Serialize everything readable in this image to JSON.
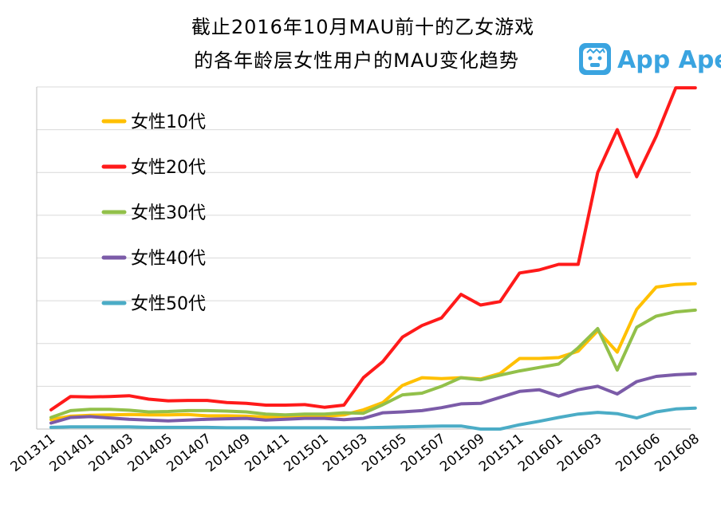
{
  "title_lines": [
    "截止2016年10月MAU前十的乙女游戏",
    "的各年龄层女性用户的MAU变化趋势"
  ],
  "brand": {
    "name": "App Ape",
    "color": "#3aa4e0",
    "icon": "ape-face-icon"
  },
  "chart_data": {
    "type": "line",
    "title": "截止2016年10月MAU前十的乙女游戏 的各年龄层女性用户的MAU变化趋势",
    "xlabel": "",
    "ylabel": "",
    "ylim": [
      0,
      8
    ],
    "grid": true,
    "legend_position": "top-left",
    "y_tick_labels_shown": false,
    "x": [
      "201311",
      "201312",
      "201401",
      "201402",
      "201403",
      "201404",
      "201405",
      "201406",
      "201407",
      "201408",
      "201409",
      "201410",
      "201411",
      "201412",
      "201501",
      "201502",
      "201503",
      "201504",
      "201505",
      "201506",
      "201507",
      "201508",
      "201509",
      "201510",
      "201511",
      "201512",
      "201601",
      "201602",
      "201603",
      "201604",
      "201605",
      "201606",
      "201607",
      "201608"
    ],
    "x_tick_labels": [
      "201311",
      "201401",
      "201403",
      "201405",
      "201407",
      "201409",
      "201411",
      "201501",
      "201503",
      "201505",
      "201507",
      "201509",
      "201511",
      "201601",
      "201603",
      "201606",
      "201608"
    ],
    "x_tick_indices": [
      0,
      2,
      4,
      6,
      8,
      10,
      12,
      14,
      16,
      18,
      20,
      22,
      24,
      26,
      28,
      31,
      33
    ],
    "series": [
      {
        "name": "女性10代",
        "color": "#ffc000",
        "values": [
          0.22,
          0.3,
          0.32,
          0.33,
          0.34,
          0.33,
          0.33,
          0.34,
          0.31,
          0.31,
          0.3,
          0.28,
          0.28,
          0.3,
          0.3,
          0.33,
          0.45,
          0.62,
          1.02,
          1.2,
          1.18,
          1.2,
          1.17,
          1.3,
          1.65,
          1.65,
          1.67,
          1.82,
          2.3,
          1.8,
          2.8,
          3.32,
          3.38,
          3.4
        ]
      },
      {
        "name": "女性20代",
        "color": "#ff1a1a",
        "values": [
          0.45,
          0.76,
          0.75,
          0.76,
          0.78,
          0.7,
          0.66,
          0.67,
          0.67,
          0.62,
          0.6,
          0.56,
          0.56,
          0.57,
          0.51,
          0.56,
          1.2,
          1.58,
          2.15,
          2.42,
          2.6,
          3.15,
          2.9,
          2.98,
          3.65,
          3.72,
          3.85,
          3.85,
          6.0,
          7.0,
          5.9,
          6.85,
          7.98,
          7.98
        ]
      },
      {
        "name": "女性30代",
        "color": "#92c04a",
        "values": [
          0.27,
          0.43,
          0.46,
          0.46,
          0.44,
          0.4,
          0.41,
          0.43,
          0.43,
          0.42,
          0.4,
          0.35,
          0.33,
          0.35,
          0.35,
          0.38,
          0.37,
          0.57,
          0.8,
          0.84,
          1.0,
          1.2,
          1.15,
          1.26,
          1.36,
          1.44,
          1.52,
          1.9,
          2.35,
          1.38,
          2.38,
          2.64,
          2.74,
          2.78
        ]
      },
      {
        "name": "女性40代",
        "color": "#7b5ba8",
        "values": [
          0.14,
          0.27,
          0.29,
          0.26,
          0.23,
          0.21,
          0.19,
          0.21,
          0.23,
          0.24,
          0.25,
          0.21,
          0.23,
          0.25,
          0.25,
          0.22,
          0.25,
          0.38,
          0.4,
          0.43,
          0.5,
          0.59,
          0.6,
          0.74,
          0.88,
          0.92,
          0.77,
          0.92,
          1.0,
          0.82,
          1.11,
          1.23,
          1.27,
          1.29
        ]
      },
      {
        "name": "女性50代",
        "color": "#4bacc6",
        "values": [
          0.04,
          0.05,
          0.05,
          0.05,
          0.05,
          0.04,
          0.04,
          0.04,
          0.04,
          0.03,
          0.03,
          0.03,
          0.03,
          0.03,
          0.03,
          0.03,
          0.03,
          0.04,
          0.05,
          0.06,
          0.07,
          0.07,
          0.0,
          0.0,
          0.1,
          0.18,
          0.27,
          0.35,
          0.39,
          0.36,
          0.26,
          0.4,
          0.47,
          0.49
        ]
      }
    ]
  }
}
